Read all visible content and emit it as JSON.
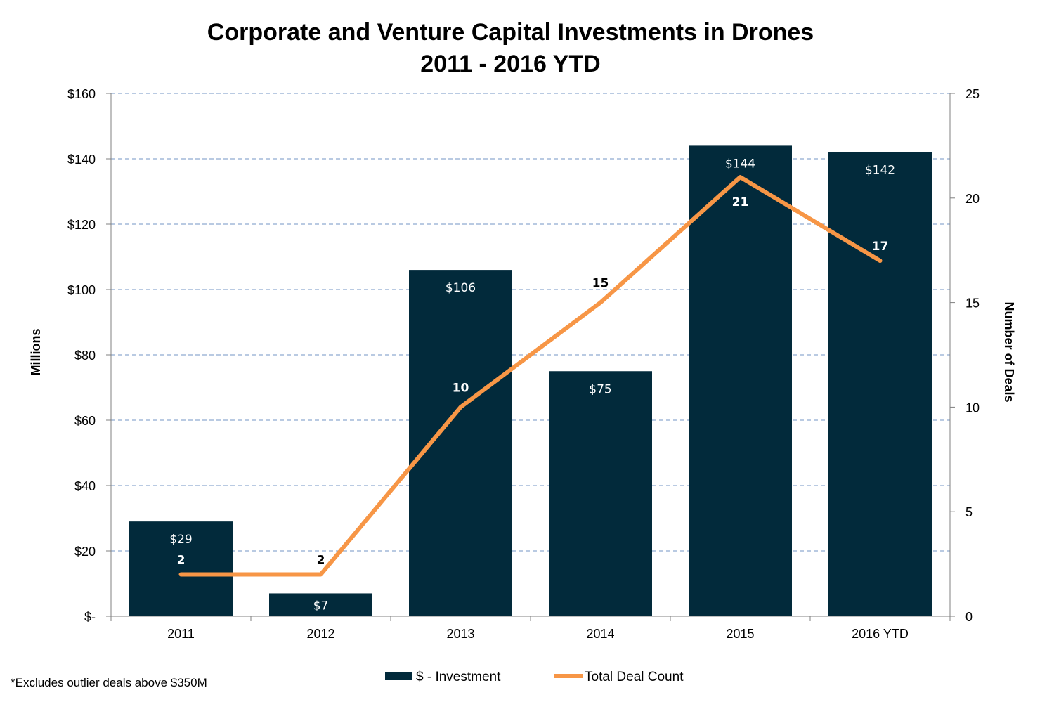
{
  "chart_data": {
    "type": "bar",
    "title": "Corporate and Venture Capital Investments in Drones",
    "subtitle": "2011 - 2016 YTD",
    "categories": [
      "2011",
      "2012",
      "2013",
      "2014",
      "2015",
      "2016 YTD"
    ],
    "series": [
      {
        "name": "$ - Investment",
        "type": "bar",
        "axis": "left",
        "values": [
          29,
          7,
          106,
          75,
          144,
          142
        ],
        "labels": [
          "$29",
          "$7",
          "$106",
          "$75",
          "$144",
          "$142"
        ],
        "color": "#022a3b"
      },
      {
        "name": "Total Deal Count",
        "type": "line",
        "axis": "right",
        "values": [
          2,
          2,
          10,
          15,
          21,
          17
        ],
        "labels": [
          "2",
          "2",
          "10",
          "15",
          "21",
          "17"
        ],
        "color": "#f79646"
      }
    ],
    "ylabel": "Millions",
    "y2label": "Number of Deals",
    "ylim": [
      0,
      160
    ],
    "y2lim": [
      0,
      25
    ],
    "yticks": [
      0,
      20,
      40,
      60,
      80,
      100,
      120,
      140,
      160
    ],
    "ytick_labels": [
      "$-",
      "$20",
      "$40",
      "$60",
      "$80",
      "$100",
      "$120",
      "$140",
      "$160"
    ],
    "y2ticks": [
      0,
      5,
      10,
      15,
      20,
      25
    ],
    "y2tick_labels": [
      "0",
      "5",
      "10",
      "15",
      "20",
      "25"
    ],
    "grid": true,
    "legend_position": "bottom"
  },
  "footnote": "*Excludes outlier deals above $350M"
}
